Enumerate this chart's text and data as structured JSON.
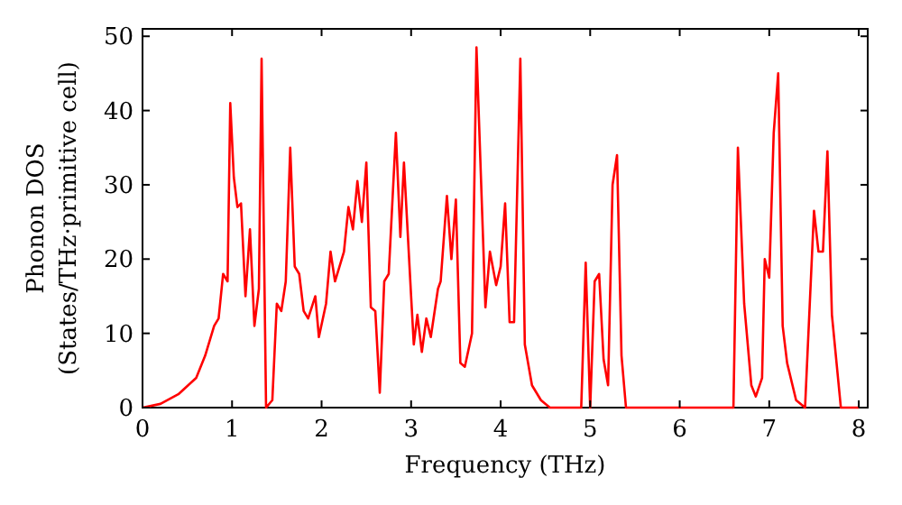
{
  "chart_data": {
    "type": "line",
    "xlabel": "Frequency (THz)",
    "ylabel": "Phonon DOS\n(States/THz·primitive cell)",
    "xlim": [
      0,
      8.1
    ],
    "ylim": [
      0,
      51
    ],
    "xticks": [
      0,
      1,
      2,
      3,
      4,
      5,
      6,
      7,
      8
    ],
    "yticks": [
      0,
      10,
      20,
      30,
      40,
      50
    ],
    "grid": false,
    "marker": "none",
    "line_style": "solid",
    "series": [
      {
        "color": "#ff0000",
        "x": [
          0,
          0.2,
          0.4,
          0.6,
          0.7,
          0.8,
          0.85,
          0.9,
          0.95,
          0.98,
          1.02,
          1.06,
          1.1,
          1.15,
          1.2,
          1.25,
          1.3,
          1.33,
          1.38,
          1.45,
          1.5,
          1.55,
          1.6,
          1.65,
          1.7,
          1.75,
          1.8,
          1.85,
          1.93,
          1.97,
          2.05,
          2.1,
          2.15,
          2.2,
          2.25,
          2.3,
          2.35,
          2.4,
          2.45,
          2.5,
          2.55,
          2.6,
          2.65,
          2.7,
          2.75,
          2.83,
          2.88,
          2.92,
          3.0,
          3.03,
          3.07,
          3.12,
          3.17,
          3.22,
          3.3,
          3.33,
          3.4,
          3.45,
          3.5,
          3.55,
          3.6,
          3.68,
          3.73,
          3.83,
          3.88,
          3.95,
          4.0,
          4.05,
          4.1,
          4.15,
          4.22,
          4.27,
          4.35,
          4.45,
          4.55,
          4.9,
          4.95,
          5.0,
          5.05,
          5.1,
          5.15,
          5.2,
          5.25,
          5.3,
          5.35,
          5.4,
          6.6,
          6.65,
          6.72,
          6.8,
          6.85,
          6.92,
          6.95,
          7.0,
          7.05,
          7.1,
          7.15,
          7.2,
          7.3,
          7.4,
          7.5,
          7.55,
          7.6,
          7.65,
          7.7,
          7.8,
          8.0
        ],
        "values": [
          0,
          0.5,
          1.8,
          4,
          7,
          11,
          12,
          18,
          17,
          41,
          31,
          27,
          27.5,
          15,
          24,
          11,
          16,
          47,
          0,
          1,
          14,
          13,
          17,
          35,
          19,
          18,
          13,
          12,
          15,
          9.5,
          14,
          21,
          17,
          19,
          21,
          27,
          24,
          30.5,
          25,
          33,
          13.5,
          13,
          2,
          17,
          18,
          37,
          23,
          33,
          15,
          8.5,
          12.5,
          7.5,
          12,
          9.5,
          16,
          17,
          28.5,
          20,
          28,
          6,
          5.5,
          10,
          48.5,
          13.5,
          21,
          16.5,
          19,
          27.5,
          11.5,
          11.5,
          47,
          8.5,
          3,
          1,
          0,
          0,
          19.5,
          0,
          17,
          18,
          6.5,
          3,
          30,
          34,
          7,
          0,
          0,
          35,
          14,
          3,
          1.5,
          4,
          20,
          17.5,
          37,
          45,
          11,
          6,
          1,
          0,
          26.5,
          21,
          21,
          34.5,
          12.5,
          0,
          0
        ]
      }
    ]
  }
}
